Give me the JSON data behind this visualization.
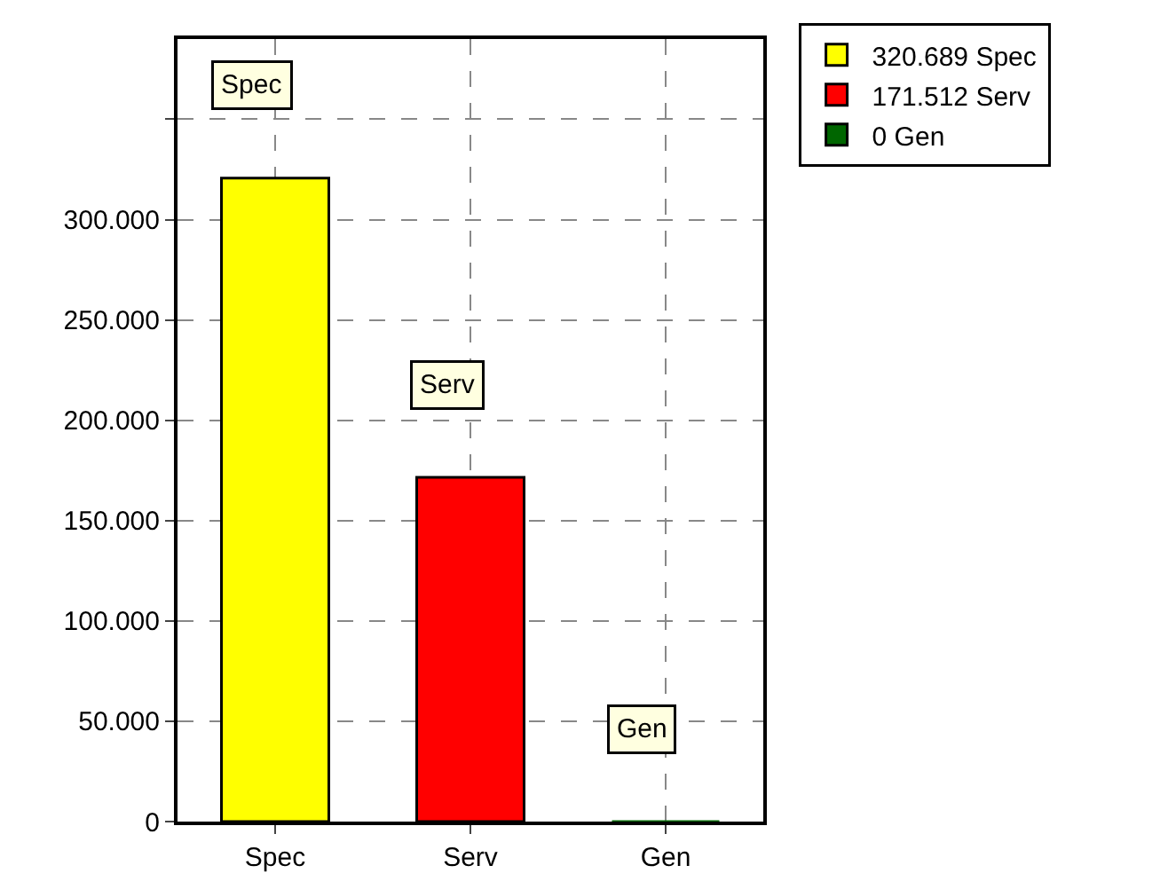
{
  "chart_data": {
    "type": "bar",
    "categories": [
      "Spec",
      "Serv",
      "Gen"
    ],
    "series": [
      {
        "name": "320.689 Spec",
        "color": "#ffff00",
        "values": [
          320689,
          null,
          null
        ]
      },
      {
        "name": "171.512 Serv",
        "color": "#ff0000",
        "values": [
          null,
          171512,
          null
        ]
      },
      {
        "name": "0 Gen",
        "color": "#006600",
        "values": [
          null,
          null,
          0
        ]
      }
    ],
    "ylim": [
      0,
      390000
    ],
    "yticks": [
      0,
      {
        "value": 50000,
        "label": "50.000"
      },
      {
        "value": 100000,
        "label": "100.000"
      },
      {
        "value": 150000,
        "label": "150.000"
      },
      {
        "value": 200000,
        "label": "200.000"
      },
      {
        "value": 250000,
        "label": "250.000"
      },
      {
        "value": 300000,
        "label": "300.000"
      },
      {
        "value": 350000,
        "label": null
      }
    ],
    "annotations": [
      "Spec",
      "Serv",
      "Gen"
    ],
    "grid": true,
    "legend": "top right"
  }
}
